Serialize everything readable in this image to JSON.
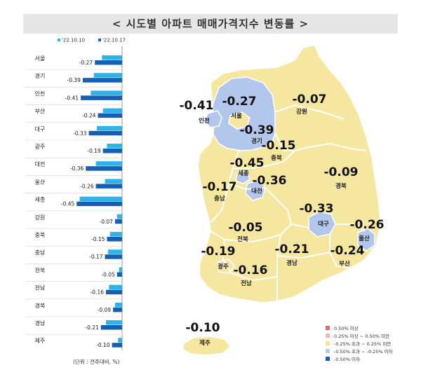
{
  "title": "< 시도별 아파트 매매가격지수 변동률 >",
  "unit_note": "(단위 : 전주대비, %)",
  "colors": {
    "prev_week": "#2cb4e8",
    "this_week": "#1560b5",
    "legend_up_strong": "#e06870",
    "legend_up": "#f2b7b4",
    "legend_flat": "#f5e49a",
    "legend_down": "#b7c9ee",
    "legend_down_strong": "#2a55b8",
    "map_flat": "#f6e7a0",
    "map_down": "#b3c6eb",
    "map_border": "#ffffff"
  },
  "chart_data": [
    {
      "type": "bar",
      "orientation": "horizontal",
      "title": "",
      "xlabel": "",
      "ylabel": "",
      "legend_position": "top",
      "categories": [
        "서울",
        "경기",
        "인천",
        "부산",
        "대구",
        "광주",
        "대전",
        "울산",
        "세종",
        "강원",
        "충북",
        "충남",
        "전북",
        "전남",
        "경북",
        "경남",
        "제주"
      ],
      "series": [
        {
          "name": "'22.10.10",
          "values": [
            -0.2,
            -0.28,
            -0.31,
            -0.19,
            -0.25,
            -0.15,
            -0.26,
            -0.17,
            -0.42,
            -0.05,
            -0.12,
            -0.14,
            -0.03,
            -0.13,
            -0.07,
            -0.16,
            -0.04
          ]
        },
        {
          "name": "'22.10.17",
          "values": [
            -0.27,
            -0.39,
            -0.41,
            -0.24,
            -0.33,
            -0.19,
            -0.36,
            -0.26,
            -0.45,
            -0.07,
            -0.15,
            -0.17,
            -0.05,
            -0.16,
            -0.09,
            -0.21,
            -0.1
          ]
        }
      ],
      "data_labels": [
        "-0.27",
        "-0.39",
        "-0.41",
        "-0.24",
        "-0.33",
        "-0.19",
        "-0.36",
        "-0.26",
        "-0.45",
        "-0.07",
        "-0.15",
        "-0.17",
        "-0.05",
        "-0.16",
        "-0.09",
        "-0.21",
        "-0.10"
      ],
      "xlim": [
        -0.48,
        0
      ]
    }
  ],
  "map": {
    "regions": [
      {
        "name": "인천",
        "value": "-0.41",
        "category": "down"
      },
      {
        "name": "서울",
        "value": "-0.27",
        "category": "down"
      },
      {
        "name": "경기",
        "value": "-0.39",
        "category": "down"
      },
      {
        "name": "강원",
        "value": "-0.07",
        "category": "flat"
      },
      {
        "name": "충북",
        "value": "-0.15",
        "category": "flat"
      },
      {
        "name": "세종",
        "value": "-0.45",
        "category": "down"
      },
      {
        "name": "대전",
        "value": "-0.36",
        "category": "down"
      },
      {
        "name": "충남",
        "value": "-0.17",
        "category": "flat"
      },
      {
        "name": "경북",
        "value": "-0.09",
        "category": "flat"
      },
      {
        "name": "대구",
        "value": "-0.33",
        "category": "down"
      },
      {
        "name": "울산",
        "value": "-0.26",
        "category": "down"
      },
      {
        "name": "전북",
        "value": "-0.05",
        "category": "flat"
      },
      {
        "name": "광주",
        "value": "-0.19",
        "category": "flat"
      },
      {
        "name": "전남",
        "value": "-0.16",
        "category": "flat"
      },
      {
        "name": "경남",
        "value": "-0.21",
        "category": "flat"
      },
      {
        "name": "부산",
        "value": "-0.24",
        "category": "flat"
      },
      {
        "name": "제주",
        "value": "-0.10",
        "category": "flat"
      }
    ],
    "legend": [
      {
        "label": "0.50% 이상",
        "color_key": "legend_up_strong"
      },
      {
        "label": "0.25% 이상 ~ 0.50% 미만",
        "color_key": "legend_up"
      },
      {
        "label": "-0.25% 초과 ~ 0.25% 미만",
        "color_key": "legend_flat"
      },
      {
        "label": "-0.50% 초과 ~ -0.25% 이하",
        "color_key": "legend_down"
      },
      {
        "label": "-0.50% 이하",
        "color_key": "legend_down_strong"
      }
    ]
  }
}
